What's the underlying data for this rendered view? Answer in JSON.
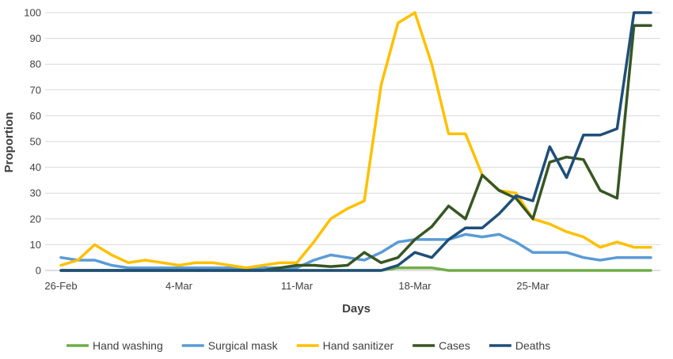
{
  "chart_data": {
    "type": "line",
    "xlabel": "Days",
    "ylabel": "Proportion",
    "ylim": [
      0,
      100
    ],
    "yticks": [
      0,
      10,
      20,
      30,
      40,
      50,
      60,
      70,
      80,
      90,
      100
    ],
    "x": [
      "26-Feb",
      "27-Feb",
      "28-Feb",
      "29-Feb",
      "1-Mar",
      "2-Mar",
      "3-Mar",
      "4-Mar",
      "5-Mar",
      "6-Mar",
      "7-Mar",
      "8-Mar",
      "9-Mar",
      "10-Mar",
      "11-Mar",
      "12-Mar",
      "13-Mar",
      "14-Mar",
      "15-Mar",
      "16-Mar",
      "17-Mar",
      "18-Mar",
      "19-Mar",
      "20-Mar",
      "21-Mar",
      "22-Mar",
      "23-Mar",
      "24-Mar",
      "25-Mar",
      "26-Mar",
      "27-Mar",
      "28-Mar",
      "29-Mar",
      "30-Mar",
      "31-Mar",
      "1-Apr"
    ],
    "xtick_labels": [
      {
        "index": 0,
        "label": "26-Feb"
      },
      {
        "index": 7,
        "label": "4-Mar"
      },
      {
        "index": 14,
        "label": "11-Mar"
      },
      {
        "index": 21,
        "label": "18-Mar"
      },
      {
        "index": 28,
        "label": "25-Mar"
      }
    ],
    "grid": true,
    "legend_position": "bottom",
    "series": [
      {
        "name": "Hand washing",
        "color": "#70AD47",
        "values": [
          0,
          0,
          0,
          0,
          0,
          0,
          0,
          0,
          0,
          0,
          0,
          0,
          0,
          0,
          0,
          0,
          0,
          0,
          0,
          0,
          1,
          1,
          1,
          0,
          0,
          0,
          0,
          0,
          0,
          0,
          0,
          0,
          0,
          0,
          0,
          0
        ]
      },
      {
        "name": "Surgical mask",
        "color": "#5B9BD5",
        "values": [
          5,
          4,
          4,
          2,
          1,
          1,
          1,
          1,
          1,
          1,
          1,
          1,
          1,
          1,
          1,
          4,
          6,
          5,
          4,
          7,
          11,
          12,
          12,
          12,
          14,
          13,
          14,
          11,
          7,
          7,
          7,
          5,
          4,
          5,
          5,
          5
        ]
      },
      {
        "name": "Hand sanitizer",
        "color": "#FFC000",
        "values": [
          2,
          4,
          10,
          6,
          3,
          4,
          3,
          2,
          3,
          3,
          2,
          1,
          2,
          3,
          3,
          11,
          20,
          24,
          27,
          72,
          96,
          100,
          80,
          53,
          53,
          37,
          31,
          30,
          20,
          18,
          15,
          13,
          9,
          11,
          9,
          9
        ]
      },
      {
        "name": "Cases",
        "color": "#375623",
        "values": [
          0,
          0,
          0,
          0,
          0,
          0,
          0,
          0,
          0,
          0,
          0,
          0,
          0,
          1,
          2,
          2,
          1.5,
          2,
          7,
          3,
          5,
          12,
          17,
          25,
          20,
          37,
          31,
          28,
          20,
          42,
          44,
          43,
          31,
          28,
          95,
          95
        ]
      },
      {
        "name": "Deaths",
        "color": "#1F4E79",
        "values": [
          0,
          0,
          0,
          0,
          0,
          0,
          0,
          0,
          0,
          0,
          0,
          0,
          0,
          0,
          0,
          0,
          0,
          0,
          0,
          0,
          2,
          7,
          5,
          12,
          16.5,
          16.5,
          22,
          29,
          27,
          48,
          36,
          52.5,
          52.5,
          55,
          100,
          100
        ]
      }
    ]
  }
}
